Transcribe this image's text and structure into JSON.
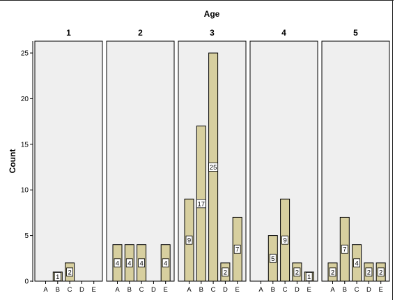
{
  "chart_data": {
    "type": "bar",
    "title": "Age",
    "ylabel": "Count",
    "ylim": [
      0,
      27
    ],
    "yticks": [
      0,
      5,
      10,
      15,
      20,
      25
    ],
    "categories": [
      "A",
      "B",
      "C",
      "D",
      "E"
    ],
    "panels": [
      {
        "label": "1",
        "values": [
          0,
          1,
          2,
          0,
          0
        ]
      },
      {
        "label": "2",
        "values": [
          4,
          4,
          4,
          0,
          4
        ]
      },
      {
        "label": "3",
        "values": [
          9,
          17,
          25,
          2,
          7
        ]
      },
      {
        "label": "4",
        "values": [
          0,
          5,
          9,
          2,
          1
        ]
      },
      {
        "label": "5",
        "values": [
          2,
          7,
          4,
          2,
          2
        ]
      }
    ],
    "colors": {
      "bar_fill": "#d7cf9f",
      "panel_bg": "#efefef",
      "edge": "#000000"
    },
    "data_labels": true,
    "grid": false
  }
}
